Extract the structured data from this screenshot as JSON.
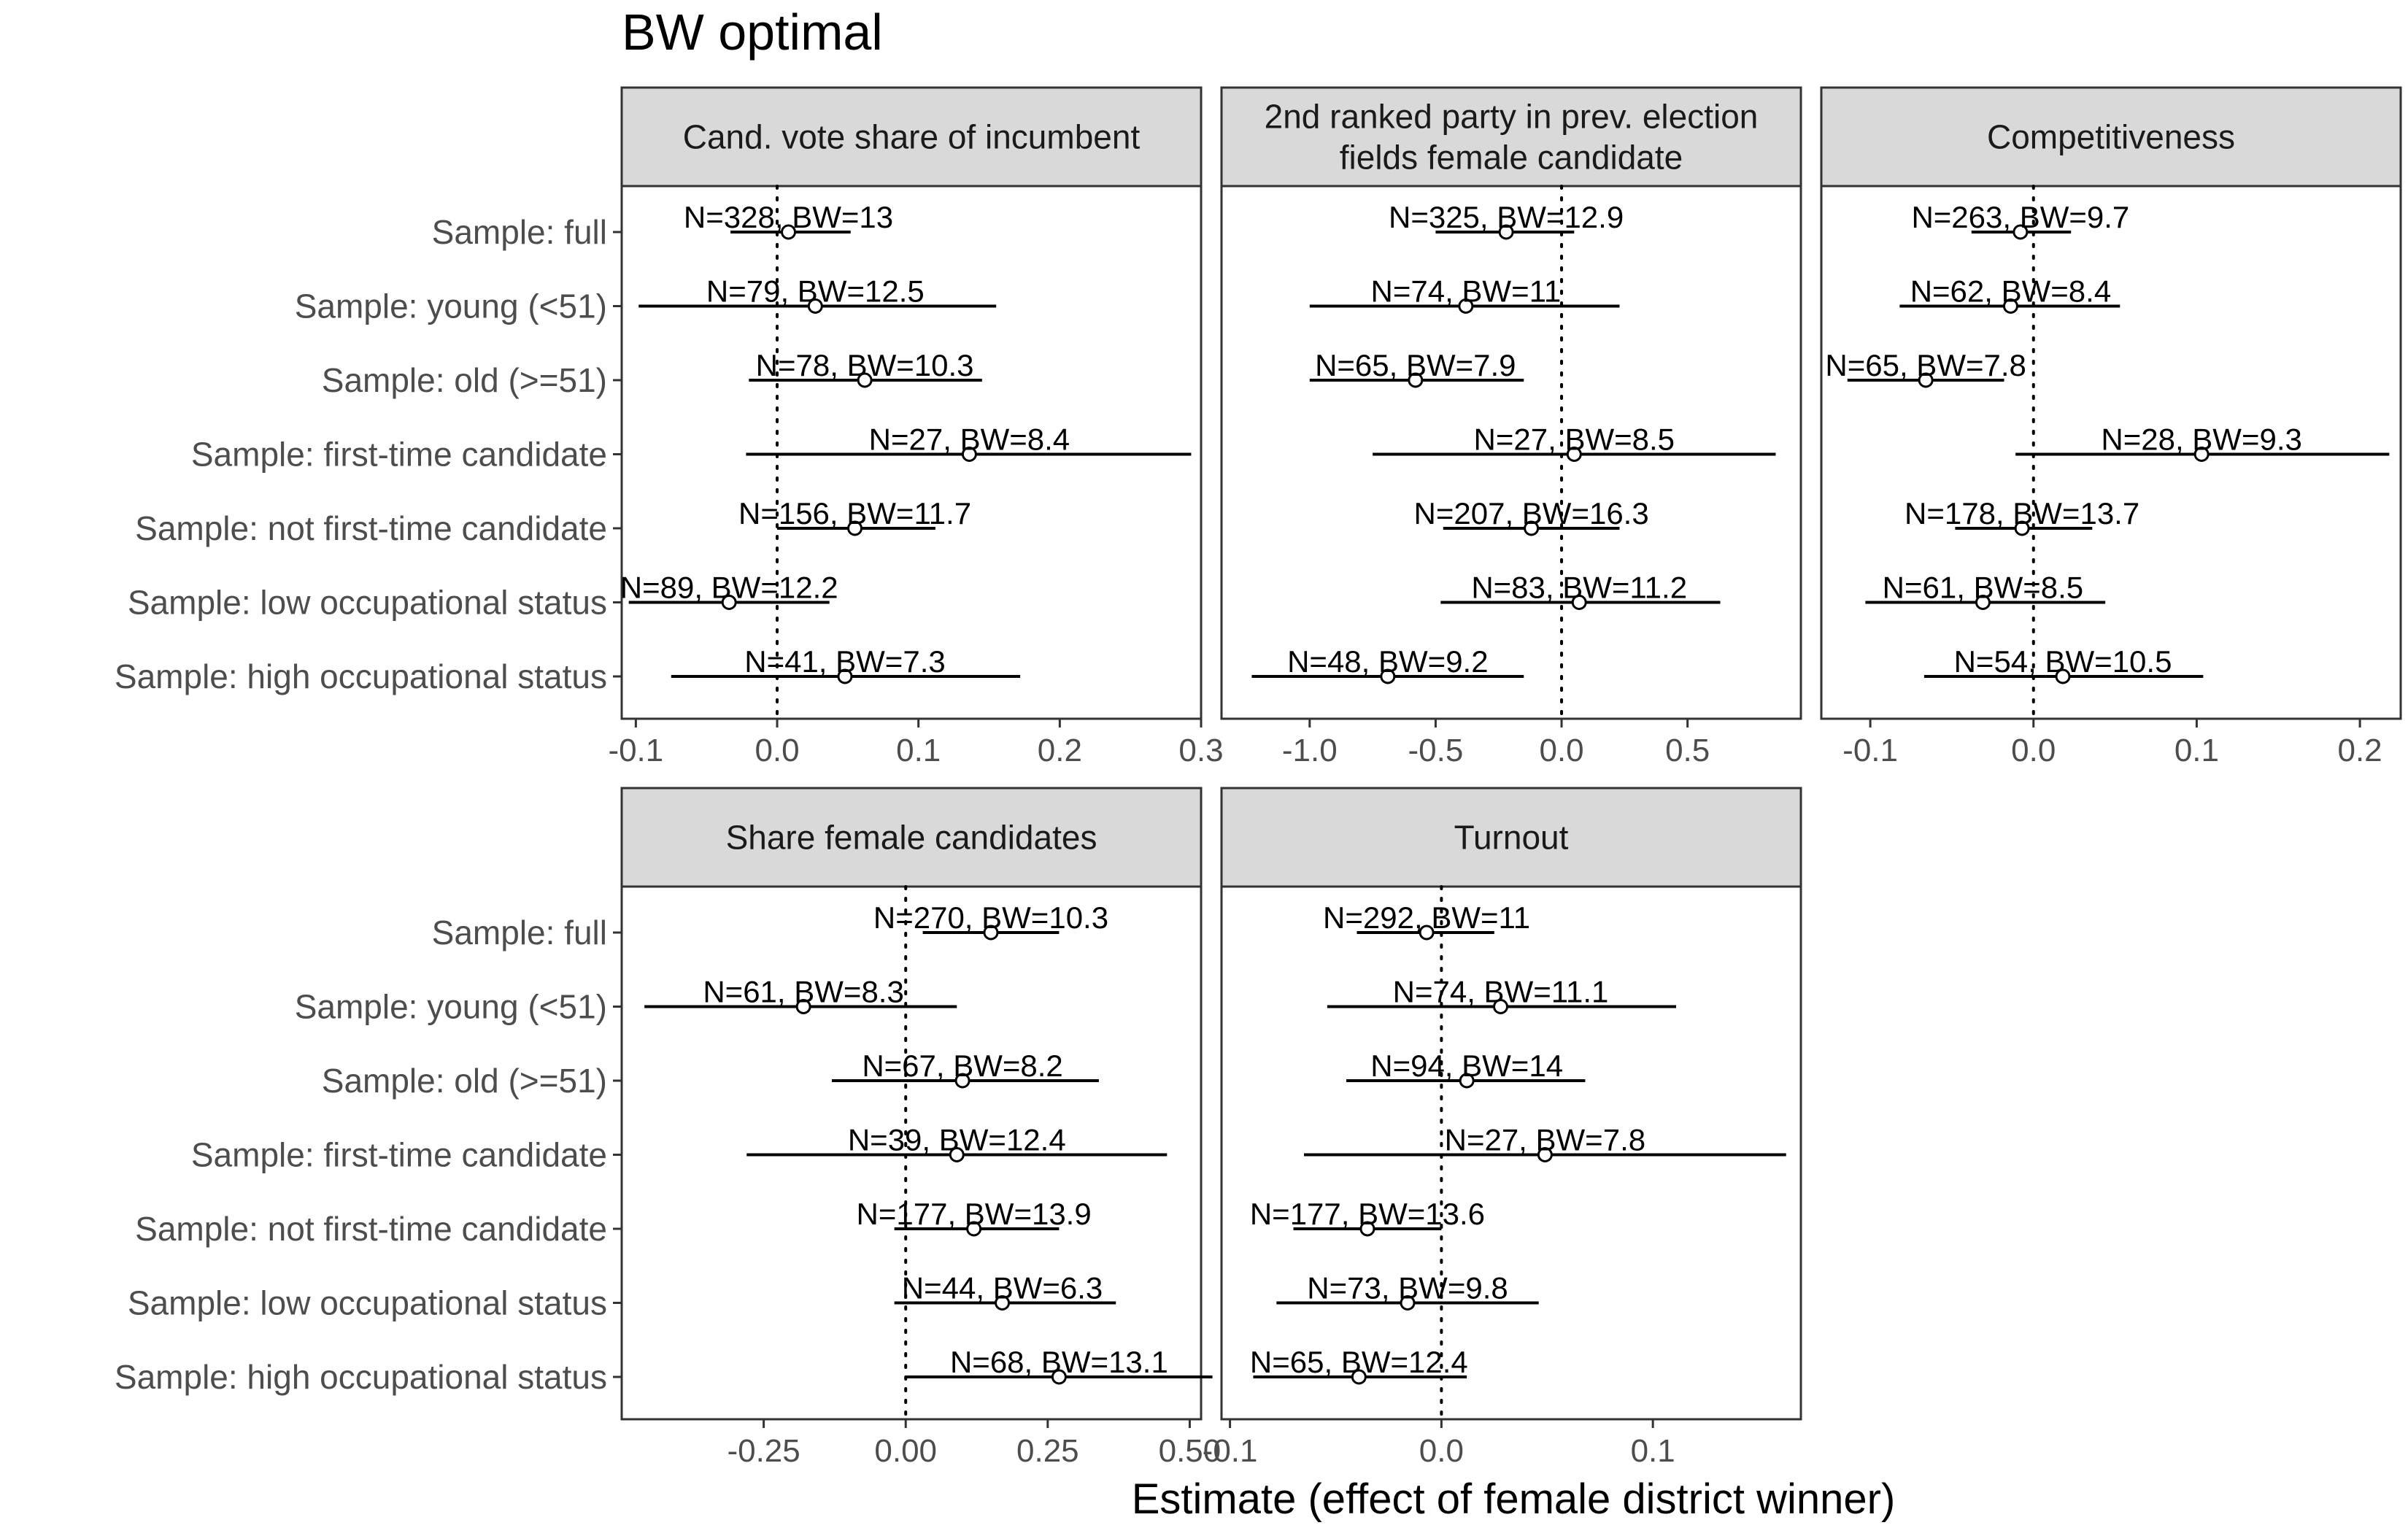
{
  "title": "BW optimal",
  "xlabel": "Estimate (effect of female district winner)",
  "colors": {
    "strip_fill": "#d9d9d9",
    "frame": "#333333",
    "text": "#000000",
    "axis_text": "#4d4d4d",
    "point_fill": "#ffffff"
  },
  "samples": [
    "Sample: full",
    "Sample: young (<51)",
    "Sample: old (>=51)",
    "Sample: first-time candidate",
    "Sample: not first-time candidate",
    "Sample: low occupational status",
    "Sample: high occupational status"
  ],
  "chart_data": [
    {
      "type": "forest",
      "panel": "Cand. vote share of incumbent",
      "strip_lines": [
        "Cand. vote share of incumbent"
      ],
      "xlim": [
        -0.11,
        0.3
      ],
      "ticks": [
        -0.1,
        0.0,
        0.1,
        0.2,
        0.3
      ],
      "tick_labels": [
        "-0.1",
        "0.0",
        "0.1",
        "0.2",
        "0.3"
      ],
      "estimates": [
        {
          "est": 0.008,
          "lo": -0.033,
          "hi": 0.052,
          "label": "N=328, BW=13"
        },
        {
          "est": 0.027,
          "lo": -0.098,
          "hi": 0.155,
          "label": "N=79, BW=12.5"
        },
        {
          "est": 0.062,
          "lo": -0.02,
          "hi": 0.145,
          "label": "N=78, BW=10.3"
        },
        {
          "est": 0.136,
          "lo": -0.022,
          "hi": 0.293,
          "label": "N=27, BW=8.4"
        },
        {
          "est": 0.055,
          "lo": 0.0,
          "hi": 0.112,
          "label": "N=156, BW=11.7"
        },
        {
          "est": -0.034,
          "lo": -0.105,
          "hi": 0.037,
          "label": "N=89, BW=12.2"
        },
        {
          "est": 0.048,
          "lo": -0.075,
          "hi": 0.172,
          "label": "N=41, BW=7.3"
        }
      ]
    },
    {
      "type": "forest",
      "panel": "2nd ranked party in prev. election fields female candidate",
      "strip_lines": [
        "2nd ranked party in prev. election",
        "fields female candidate"
      ],
      "xlim": [
        -1.35,
        0.95
      ],
      "ticks": [
        -1.0,
        -0.5,
        0.0,
        0.5
      ],
      "tick_labels": [
        "-1.0",
        "-0.5",
        "0.0",
        "0.5"
      ],
      "estimates": [
        {
          "est": -0.22,
          "lo": -0.5,
          "hi": 0.05,
          "label": "N=325, BW=12.9"
        },
        {
          "est": -0.38,
          "lo": -1.0,
          "hi": 0.23,
          "label": "N=74, BW=11"
        },
        {
          "est": -0.58,
          "lo": -1.0,
          "hi": -0.15,
          "label": "N=65, BW=7.9"
        },
        {
          "est": 0.05,
          "lo": -0.75,
          "hi": 0.85,
          "label": "N=27, BW=8.5"
        },
        {
          "est": -0.12,
          "lo": -0.47,
          "hi": 0.23,
          "label": "N=207, BW=16.3"
        },
        {
          "est": 0.07,
          "lo": -0.48,
          "hi": 0.63,
          "label": "N=83, BW=11.2"
        },
        {
          "est": -0.69,
          "lo": -1.23,
          "hi": -0.15,
          "label": "N=48, BW=9.2"
        }
      ]
    },
    {
      "type": "forest",
      "panel": "Competitiveness",
      "strip_lines": [
        "Competitiveness"
      ],
      "xlim": [
        -0.13,
        0.225
      ],
      "ticks": [
        -0.1,
        0.0,
        0.1,
        0.2
      ],
      "tick_labels": [
        "-0.1",
        "0.0",
        "0.1",
        "0.2"
      ],
      "estimates": [
        {
          "est": -0.008,
          "lo": -0.038,
          "hi": 0.023,
          "label": "N=263, BW=9.7"
        },
        {
          "est": -0.014,
          "lo": -0.082,
          "hi": 0.053,
          "label": "N=62, BW=8.4"
        },
        {
          "est": -0.066,
          "lo": -0.114,
          "hi": -0.018,
          "label": "N=65, BW=7.8"
        },
        {
          "est": 0.103,
          "lo": -0.011,
          "hi": 0.218,
          "label": "N=28, BW=9.3"
        },
        {
          "est": -0.007,
          "lo": -0.048,
          "hi": 0.036,
          "label": "N=178, BW=13.7"
        },
        {
          "est": -0.031,
          "lo": -0.103,
          "hi": 0.044,
          "label": "N=61, BW=8.5"
        },
        {
          "est": 0.018,
          "lo": -0.067,
          "hi": 0.104,
          "label": "N=54, BW=10.5"
        }
      ]
    },
    {
      "type": "forest",
      "panel": "Share female candidates",
      "strip_lines": [
        "Share female candidates"
      ],
      "xlim": [
        -0.5,
        0.52
      ],
      "ticks": [
        -0.25,
        0.0,
        0.25,
        0.5
      ],
      "tick_labels": [
        "-0.25",
        "0.00",
        "0.25",
        "0.50"
      ],
      "estimates": [
        {
          "est": 0.15,
          "lo": 0.03,
          "hi": 0.27,
          "label": "N=270, BW=10.3"
        },
        {
          "est": -0.18,
          "lo": -0.46,
          "hi": 0.09,
          "label": "N=61, BW=8.3"
        },
        {
          "est": 0.1,
          "lo": -0.13,
          "hi": 0.34,
          "label": "N=67, BW=8.2"
        },
        {
          "est": 0.09,
          "lo": -0.28,
          "hi": 0.46,
          "label": "N=39, BW=12.4"
        },
        {
          "est": 0.12,
          "lo": -0.02,
          "hi": 0.27,
          "label": "N=177, BW=13.9"
        },
        {
          "est": 0.17,
          "lo": -0.02,
          "hi": 0.37,
          "label": "N=44, BW=6.3"
        },
        {
          "est": 0.27,
          "lo": 0.0,
          "hi": 0.54,
          "label": "N=68, BW=13.1"
        }
      ]
    },
    {
      "type": "forest",
      "panel": "Turnout",
      "strip_lines": [
        "Turnout"
      ],
      "xlim": [
        -0.104,
        0.17
      ],
      "ticks": [
        -0.1,
        0.0,
        0.1
      ],
      "tick_labels": [
        "-0.1",
        "0.0",
        "0.1"
      ],
      "estimates": [
        {
          "est": -0.007,
          "lo": -0.04,
          "hi": 0.025,
          "label": "N=292, BW=11"
        },
        {
          "est": 0.028,
          "lo": -0.054,
          "hi": 0.111,
          "label": "N=74, BW=11.1"
        },
        {
          "est": 0.012,
          "lo": -0.045,
          "hi": 0.068,
          "label": "N=94, BW=14"
        },
        {
          "est": 0.049,
          "lo": -0.065,
          "hi": 0.163,
          "label": "N=27, BW=7.8"
        },
        {
          "est": -0.035,
          "lo": -0.07,
          "hi": 0.0,
          "label": "N=177, BW=13.6"
        },
        {
          "est": -0.016,
          "lo": -0.078,
          "hi": 0.046,
          "label": "N=73, BW=9.8"
        },
        {
          "est": -0.039,
          "lo": -0.089,
          "hi": 0.012,
          "label": "N=65, BW=12.4"
        }
      ]
    }
  ]
}
